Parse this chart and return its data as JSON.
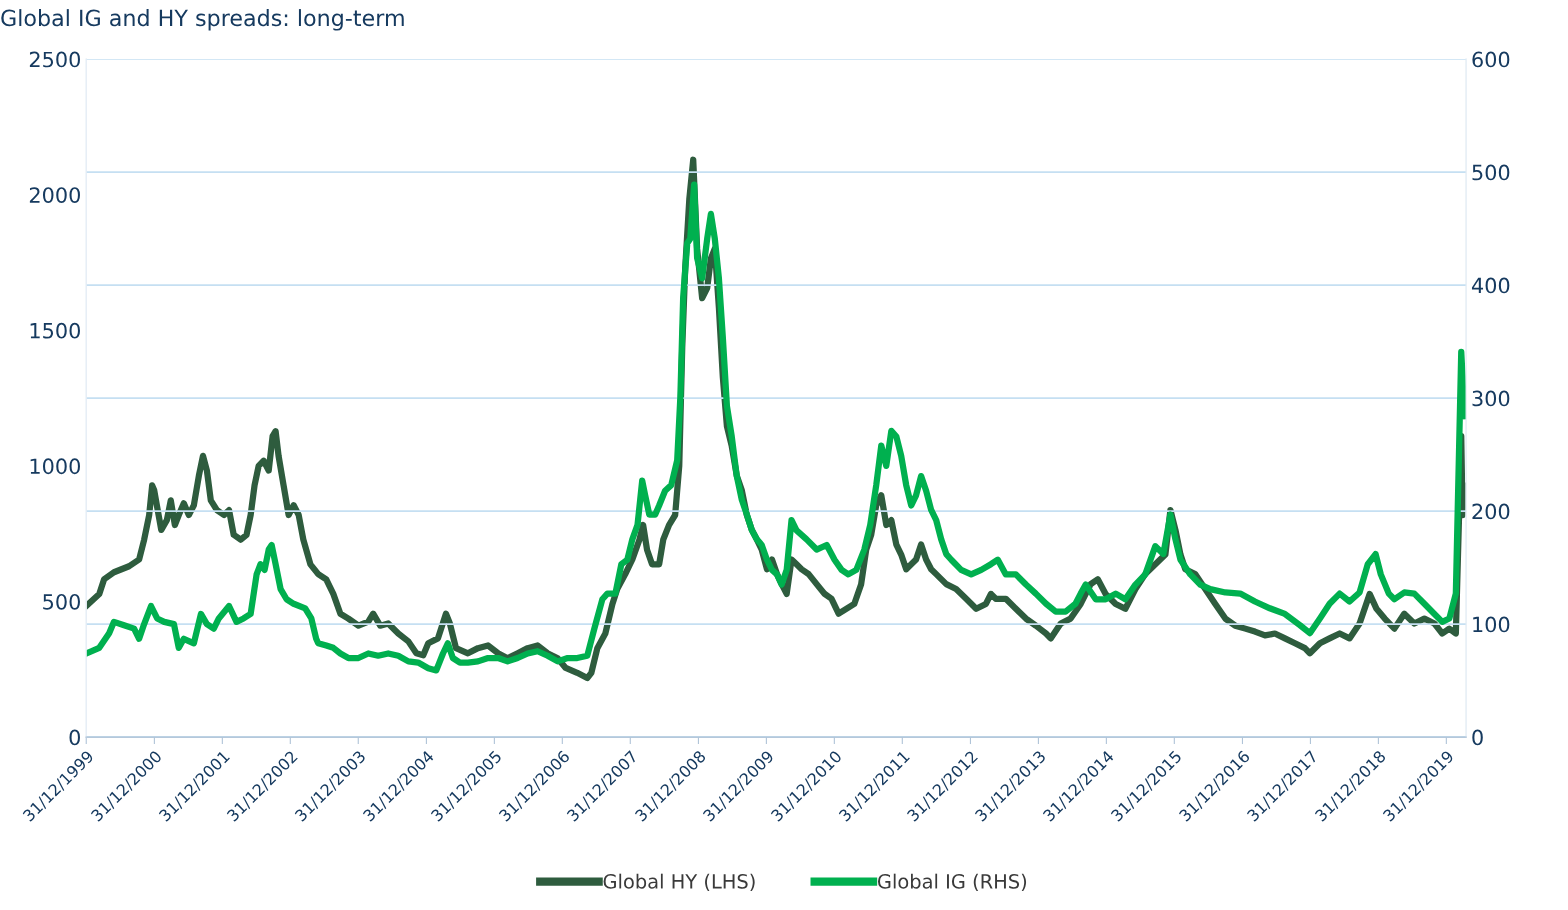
{
  "chart_data": {
    "type": "line",
    "title": "Global IG and HY spreads: long-term",
    "xlim": [
      "1999-12-31",
      "2020-04-15"
    ],
    "xticks": [
      {
        "value": "1999-12-31",
        "label": "31/12/1999"
      },
      {
        "value": "2000-12-31",
        "label": "31/12/2000"
      },
      {
        "value": "2001-12-31",
        "label": "31/12/2001"
      },
      {
        "value": "2002-12-31",
        "label": "31/12/2002"
      },
      {
        "value": "2003-12-31",
        "label": "31/12/2003"
      },
      {
        "value": "2004-12-31",
        "label": "31/12/2004"
      },
      {
        "value": "2005-12-31",
        "label": "31/12/2005"
      },
      {
        "value": "2006-12-31",
        "label": "31/12/2006"
      },
      {
        "value": "2007-12-31",
        "label": "31/12/2007"
      },
      {
        "value": "2008-12-31",
        "label": "31/12/2008"
      },
      {
        "value": "2009-12-31",
        "label": "31/12/2009"
      },
      {
        "value": "2010-12-31",
        "label": "31/12/2010"
      },
      {
        "value": "2011-12-31",
        "label": "31/12/2011"
      },
      {
        "value": "2012-12-31",
        "label": "31/12/2012"
      },
      {
        "value": "2013-12-31",
        "label": "31/12/2013"
      },
      {
        "value": "2014-12-31",
        "label": "31/12/2014"
      },
      {
        "value": "2015-12-31",
        "label": "31/12/2015"
      },
      {
        "value": "2016-12-31",
        "label": "31/12/2016"
      },
      {
        "value": "2017-12-31",
        "label": "31/12/2017"
      },
      {
        "value": "2018-12-31",
        "label": "31/12/2018"
      },
      {
        "value": "2019-12-31",
        "label": "31/12/2019"
      }
    ],
    "ylim": [
      0,
      2500
    ],
    "yticks": [
      0,
      500,
      1000,
      1500,
      2000,
      2500
    ],
    "y2lim": [
      0,
      600
    ],
    "y2ticks": [
      0,
      100,
      200,
      300,
      400,
      500,
      600
    ],
    "grid": "y2",
    "legend": "bottom",
    "marker": "none",
    "line_style": "solid",
    "series": [
      {
        "name": "Global HY (LHS)",
        "color": "#2e5c3e",
        "axis": "y",
        "x": [
          "2000-01-01",
          "2000-03-10",
          "2000-04-05",
          "2000-05-28",
          "2000-08-17",
          "2000-10-10",
          "2000-11-06",
          "2000-12-03",
          "2000-12-19",
          "2000-12-30",
          "2001-01-15",
          "2001-02-06",
          "2001-03-08",
          "2001-03-29",
          "2001-04-20",
          "2001-05-11",
          "2001-06-07",
          "2001-07-04",
          "2001-07-31",
          "2001-08-27",
          "2001-09-18",
          "2001-10-09",
          "2001-10-30",
          "2001-12-02",
          "2002-01-09",
          "2002-02-05",
          "2002-03-02",
          "2002-04-09",
          "2002-05-10",
          "2002-06-01",
          "2002-06-22",
          "2002-07-14",
          "2002-08-10",
          "2002-09-06",
          "2002-09-27",
          "2002-10-13",
          "2002-10-29",
          "2002-11-25",
          "2002-12-22",
          "2003-01-18",
          "2003-02-14",
          "2003-03-11",
          "2003-04-18",
          "2003-05-30",
          "2003-07-12",
          "2003-08-19",
          "2003-09-26",
          "2003-11-08",
          "2004-01-01",
          "2004-02-23",
          "2004-03-20",
          "2004-04-27",
          "2004-06-09",
          "2004-08-02",
          "2004-09-25",
          "2004-11-07",
          "2004-12-14",
          "2005-01-10",
          "2005-03-03",
          "2005-04-15",
          "2005-05-06",
          "2005-06-08",
          "2005-08-11",
          "2005-10-04",
          "2005-11-27",
          "2006-01-20",
          "2006-03-12",
          "2006-05-05",
          "2006-06-28",
          "2006-08-20",
          "2006-10-13",
          "2006-12-06",
          "2007-01-18",
          "2007-03-21",
          "2007-05-14",
          "2007-06-05",
          "2007-07-07",
          "2007-08-19",
          "2007-09-26",
          "2007-10-22",
          "2007-12-04",
          "2008-01-11",
          "2008-02-18",
          "2008-03-09",
          "2008-03-30",
          "2008-04-26",
          "2008-06-03",
          "2008-06-25",
          "2008-07-26",
          "2008-08-28",
          "2008-09-19",
          "2008-10-05",
          "2008-10-21",
          "2008-11-12",
          "2008-12-03",
          "2008-12-24",
          "2009-01-20",
          "2009-02-16",
          "2009-03-08",
          "2009-03-29",
          "2009-04-20",
          "2009-05-11",
          "2009-06-02",
          "2009-06-28",
          "2009-07-25",
          "2009-08-21",
          "2009-09-17",
          "2009-10-14",
          "2009-11-10",
          "2009-12-06",
          "2010-01-03",
          "2010-01-30",
          "2010-02-26",
          "2010-03-23",
          "2010-04-19",
          "2010-05-15",
          "2010-06-11",
          "2010-07-08",
          "2010-08-15",
          "2010-09-27",
          "2010-11-09",
          "2010-12-16",
          "2011-01-23",
          "2011-03-05",
          "2011-04-17",
          "2011-05-24",
          "2011-06-20",
          "2011-07-17",
          "2011-08-13",
          "2011-09-09",
          "2011-10-06",
          "2011-11-02",
          "2011-11-29",
          "2011-12-25",
          "2012-01-21",
          "2012-02-17",
          "2012-03-14",
          "2012-04-10",
          "2012-05-07",
          "2012-06-03",
          "2012-06-30",
          "2012-08-23",
          "2012-10-15",
          "2012-12-08",
          "2013-01-31",
          "2013-03-24",
          "2013-04-20",
          "2013-05-16",
          "2013-07-09",
          "2013-09-01",
          "2013-10-25",
          "2013-12-17",
          "2014-02-10",
          "2014-03-07",
          "2014-04-30",
          "2014-06-22",
          "2014-08-15",
          "2014-09-11",
          "2014-10-08",
          "2014-11-15",
          "2014-12-27",
          "2015-02-19",
          "2015-04-12",
          "2015-06-05",
          "2015-07-28",
          "2015-09-20",
          "2015-11-13",
          "2015-12-10",
          "2016-01-06",
          "2016-02-02",
          "2016-02-28",
          "2016-04-21",
          "2016-06-14",
          "2016-08-07",
          "2016-09-30",
          "2016-11-22",
          "2017-01-15",
          "2017-03-08",
          "2017-05-01",
          "2017-06-23",
          "2017-08-16",
          "2017-10-09",
          "2017-12-01",
          "2017-12-28",
          "2018-02-20",
          "2018-04-13",
          "2018-06-06",
          "2018-07-29",
          "2018-09-21",
          "2018-11-14",
          "2018-12-21",
          "2019-02-03",
          "2019-03-27",
          "2019-05-19",
          "2019-07-12",
          "2019-09-04",
          "2019-10-28",
          "2019-12-09",
          "2020-01-16",
          "2020-02-20",
          "2020-03-20",
          "2020-03-27",
          "2020-04-03"
        ],
        "values": [
          484,
          528,
          582,
          608,
          630,
          655,
          728,
          819,
          928,
          910,
          848,
          764,
          800,
          873,
          782,
          819,
          862,
          819,
          855,
          964,
          1037,
          983,
          873,
          837,
          819,
          837,
          746,
          728,
          746,
          819,
          928,
          1000,
          1019,
          983,
          1110,
          1128,
          1037,
          928,
          819,
          855,
          819,
          728,
          637,
          601,
          582,
          528,
          455,
          437,
          411,
          426,
          455,
          411,
          419,
          382,
          353,
          309,
          302,
          346,
          364,
          455,
          419,
          328,
          309,
          328,
          338,
          309,
          291,
          309,
          328,
          338,
          309,
          291,
          255,
          237,
          218,
          237,
          328,
          382,
          491,
          546,
          601,
          655,
          728,
          782,
          691,
          637,
          637,
          728,
          782,
          819,
          1001,
          1437,
          1729,
          1983,
          2129,
          1801,
          1619,
          1656,
          1765,
          1801,
          1583,
          1328,
          1146,
          1073,
          964,
          910,
          819,
          764,
          728,
          691,
          619,
          655,
          601,
          564,
          528,
          655,
          637,
          619,
          601,
          564,
          528,
          510,
          455,
          473,
          491,
          564,
          691,
          746,
          855,
          892,
          782,
          800,
          710,
          673,
          619,
          637,
          655,
          710,
          655,
          619,
          601,
          564,
          546,
          510,
          473,
          491,
          528,
          510,
          510,
          473,
          437,
          411,
          382,
          364,
          419,
          437,
          491,
          528,
          564,
          582,
          528,
          491,
          473,
          546,
          601,
          637,
          673,
          837,
          764,
          673,
          619,
          601,
          546,
          491,
          437,
          411,
          400,
          389,
          375,
          382,
          364,
          346,
          328,
          309,
          346,
          364,
          382,
          364,
          419,
          528,
          473,
          437,
          400,
          455,
          419,
          437,
          419,
          382,
          400,
          382,
          1110,
          819,
          928
        ]
      },
      {
        "name": "Global IG (RHS)",
        "color": "#00b04f",
        "axis": "y2",
        "x": [
          "2000-01-01",
          "2000-03-10",
          "2000-05-02",
          "2000-05-28",
          "2000-07-21",
          "2000-09-13",
          "2000-10-10",
          "2000-11-06",
          "2000-12-13",
          "2001-01-15",
          "2001-02-22",
          "2001-04-15",
          "2001-05-11",
          "2001-06-07",
          "2001-07-04",
          "2001-07-31",
          "2001-09-07",
          "2001-10-09",
          "2001-11-15",
          "2001-12-12",
          "2002-02-05",
          "2002-03-17",
          "2002-04-24",
          "2002-06-01",
          "2002-07-03",
          "2002-07-24",
          "2002-08-15",
          "2002-09-06",
          "2002-09-22",
          "2002-10-13",
          "2002-11-09",
          "2002-12-11",
          "2003-01-18",
          "2003-03-21",
          "2003-04-23",
          "2003-05-19",
          "2003-05-30",
          "2003-07-12",
          "2003-08-19",
          "2003-09-26",
          "2003-11-08",
          "2004-01-01",
          "2004-02-23",
          "2004-04-16",
          "2004-06-09",
          "2004-08-02",
          "2004-09-25",
          "2004-11-17",
          "2005-01-10",
          "2005-02-22",
          "2005-03-30",
          "2005-04-25",
          "2005-05-22",
          "2005-06-29",
          "2005-08-11",
          "2005-10-04",
          "2005-11-27",
          "2006-01-20",
          "2006-03-12",
          "2006-05-05",
          "2006-06-28",
          "2006-08-20",
          "2006-10-13",
          "2006-12-06",
          "2007-01-29",
          "2007-03-21",
          "2007-05-14",
          "2007-06-21",
          "2007-08-03",
          "2007-08-30",
          "2007-10-12",
          "2007-11-13",
          "2007-12-15",
          "2008-01-11",
          "2008-02-08",
          "2008-03-04",
          "2008-03-20",
          "2008-04-11",
          "2008-05-13",
          "2008-06-03",
          "2008-07-05",
          "2008-08-07",
          "2008-09-08",
          "2008-09-25",
          "2008-10-10",
          "2008-11-01",
          "2008-11-17",
          "2008-12-08",
          "2008-12-24",
          "2009-01-20",
          "2009-02-16",
          "2009-03-08",
          "2009-03-29",
          "2009-04-20",
          "2009-05-11",
          "2009-06-02",
          "2009-06-28",
          "2009-07-25",
          "2009-08-21",
          "2009-09-17",
          "2009-10-14",
          "2009-11-10",
          "2009-12-06",
          "2010-01-03",
          "2010-01-30",
          "2010-02-26",
          "2010-03-23",
          "2010-04-19",
          "2010-05-15",
          "2010-06-11",
          "2010-07-08",
          "2010-08-04",
          "2010-09-27",
          "2010-11-20",
          "2011-01-01",
          "2011-02-08",
          "2011-03-16",
          "2011-04-28",
          "2011-06-10",
          "2011-07-12",
          "2011-08-13",
          "2011-09-09",
          "2011-10-06",
          "2011-11-02",
          "2011-11-29",
          "2011-12-25",
          "2012-01-21",
          "2012-02-17",
          "2012-03-14",
          "2012-04-10",
          "2012-05-07",
          "2012-06-03",
          "2012-06-30",
          "2012-07-27",
          "2012-08-23",
          "2012-09-19",
          "2012-11-11",
          "2013-01-04",
          "2013-02-27",
          "2013-04-20",
          "2013-05-27",
          "2013-07-09",
          "2013-09-01",
          "2013-10-25",
          "2013-12-17",
          "2014-02-10",
          "2014-04-03",
          "2014-05-26",
          "2014-07-18",
          "2014-08-15",
          "2014-09-11",
          "2014-11-04",
          "2014-12-27",
          "2015-02-19",
          "2015-04-12",
          "2015-06-05",
          "2015-07-28",
          "2015-09-20",
          "2015-11-02",
          "2015-12-10",
          "2016-01-06",
          "2016-02-02",
          "2016-03-26",
          "2016-05-18",
          "2016-07-11",
          "2016-09-30",
          "2016-12-19",
          "2017-03-08",
          "2017-05-27",
          "2017-08-16",
          "2017-11-05",
          "2017-12-28",
          "2018-02-20",
          "2018-04-13",
          "2018-06-06",
          "2018-07-29",
          "2018-09-21",
          "2018-11-04",
          "2018-12-16",
          "2019-01-13",
          "2019-02-25",
          "2019-03-27",
          "2019-05-19",
          "2019-07-12",
          "2019-09-04",
          "2019-10-28",
          "2019-12-09",
          "2020-01-16",
          "2020-02-20",
          "2020-03-20",
          "2020-03-27",
          "2020-04-03"
        ],
        "values": [
          74,
          79,
          92,
          102,
          99,
          96,
          87,
          100,
          116,
          105,
          102,
          100,
          79,
          87,
          85,
          83,
          109,
          100,
          96,
          105,
          116,
          102,
          105,
          109,
          144,
          153,
          148,
          166,
          170,
          153,
          131,
          122,
          118,
          114,
          105,
          87,
          83,
          81,
          79,
          74,
          70,
          70,
          74,
          72,
          74,
          72,
          67,
          66,
          61,
          59,
          74,
          83,
          70,
          66,
          66,
          67,
          70,
          70,
          67,
          70,
          74,
          76,
          72,
          67,
          70,
          70,
          72,
          96,
          122,
          127,
          127,
          153,
          157,
          175,
          188,
          227,
          214,
          197,
          197,
          205,
          218,
          223,
          245,
          301,
          389,
          437,
          441,
          489,
          424,
          406,
          441,
          463,
          441,
          406,
          354,
          293,
          266,
          231,
          210,
          197,
          183,
          175,
          170,
          157,
          148,
          144,
          135,
          148,
          192,
          183,
          179,
          175,
          166,
          170,
          157,
          148,
          144,
          148,
          166,
          188,
          223,
          258,
          240,
          271,
          266,
          249,
          223,
          205,
          214,
          231,
          218,
          201,
          192,
          175,
          162,
          157,
          148,
          144,
          148,
          153,
          157,
          144,
          144,
          135,
          127,
          118,
          111,
          111,
          118,
          127,
          135,
          122,
          122,
          127,
          122,
          135,
          144,
          169,
          162,
          197,
          175,
          157,
          144,
          135,
          131,
          128,
          127,
          120,
          114,
          109,
          99,
          92,
          105,
          118,
          127,
          120,
          128,
          153,
          162,
          144,
          127,
          122,
          128,
          127,
          118,
          109,
          102,
          105,
          127,
          341,
          319,
          284
        ]
      }
    ]
  }
}
